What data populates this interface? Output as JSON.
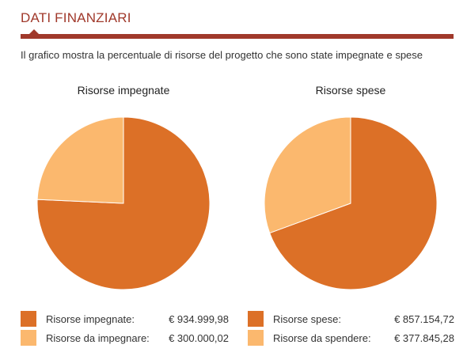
{
  "header": {
    "title": "DATI FINANZIARI",
    "description": "Il grafico mostra la percentuale di risorse del progetto che sono state impegnate e spese"
  },
  "colors": {
    "primary": "#dc7027",
    "secondary": "#fbb86e",
    "accent": "#a0392b"
  },
  "chart_data": [
    {
      "type": "pie",
      "title": "Risorse impegnate",
      "slices": [
        {
          "label": "Risorse impegnate:",
          "value": 934999.98,
          "display": "€ 934.999,98",
          "color": "#dc7027"
        },
        {
          "label": "Risorse da impegnare:",
          "value": 300000.02,
          "display": "€ 300.000,02",
          "color": "#fbb86e"
        }
      ]
    },
    {
      "type": "pie",
      "title": "Risorse spese",
      "slices": [
        {
          "label": "Risorse spese:",
          "value": 857154.72,
          "display": "€ 857.154,72",
          "color": "#dc7027"
        },
        {
          "label": "Risorse da spendere:",
          "value": 377845.28,
          "display": "€ 377.845,28",
          "color": "#fbb86e"
        }
      ]
    }
  ]
}
